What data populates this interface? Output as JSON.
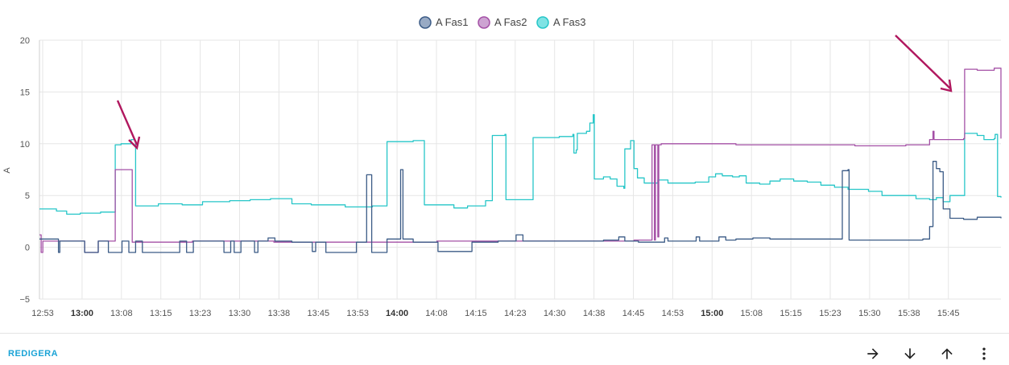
{
  "colors": {
    "series": [
      "#3b5b86",
      "#a450a6",
      "#26c6c8"
    ],
    "legend_fill": [
      "#98aac4",
      "#cda3d2",
      "#7fe3e4"
    ],
    "arrow": "#b0175e",
    "grid": "#e6e6e6",
    "edit": "#1aa3d6"
  },
  "chart_data": {
    "type": "line",
    "title": "",
    "xlabel": "",
    "ylabel": "A",
    "ylim": [
      -5,
      20
    ],
    "yticks": [
      "20",
      "15",
      "10",
      "5",
      "0",
      "−5"
    ],
    "grid": true,
    "legend_position": "top-center",
    "xticks": [
      "12:53",
      "13:00",
      "13:08",
      "13:15",
      "13:23",
      "13:30",
      "13:38",
      "13:45",
      "13:53",
      "14:00",
      "14:08",
      "14:15",
      "14:23",
      "14:30",
      "14:38",
      "14:45",
      "14:53",
      "15:00",
      "15:08",
      "15:15",
      "15:23",
      "15:30",
      "15:38",
      "15:45"
    ],
    "xticks_bold": [
      "13:00",
      "14:00",
      "15:00"
    ],
    "x_minutes_range": [
      0,
      185
    ],
    "series": [
      {
        "name": "A Fas1",
        "step": true,
        "points": [
          [
            0,
            0.8
          ],
          [
            5,
            0.8
          ],
          [
            5.6,
            -0.5
          ],
          [
            6,
            0.6
          ],
          [
            13,
            0.6
          ],
          [
            13.3,
            -0.5
          ],
          [
            17,
            -0.5
          ],
          [
            17.3,
            0.6
          ],
          [
            20,
            0.6
          ],
          [
            20.3,
            -0.5
          ],
          [
            24,
            -0.5
          ],
          [
            24.3,
            0.6
          ],
          [
            26,
            0.6
          ],
          [
            26.3,
            -0.5
          ],
          [
            28,
            -0.5
          ],
          [
            28.3,
            0.6
          ],
          [
            30,
            0.6
          ],
          [
            30.3,
            -0.5
          ],
          [
            41,
            -0.5
          ],
          [
            41.3,
            0.6
          ],
          [
            43,
            0.6
          ],
          [
            43.3,
            -0.5
          ],
          [
            45,
            -0.5
          ],
          [
            45.3,
            0.6
          ],
          [
            54,
            0.6
          ],
          [
            54.3,
            -0.5
          ],
          [
            56,
            -0.5
          ],
          [
            56.3,
            0.6
          ],
          [
            57,
            0.6
          ],
          [
            57.3,
            -0.5
          ],
          [
            59,
            -0.5
          ],
          [
            59.3,
            0.6
          ],
          [
            63,
            0.6
          ],
          [
            63.3,
            -0.5
          ],
          [
            64,
            -0.5
          ],
          [
            64.3,
            0.6
          ],
          [
            67,
            0.6
          ],
          [
            67.3,
            0.9
          ],
          [
            69,
            0.9
          ],
          [
            69.3,
            0.6
          ],
          [
            74,
            0.6
          ],
          [
            74.3,
            0.5
          ],
          [
            80,
            0.5
          ],
          [
            80.3,
            -0.4
          ],
          [
            81,
            -0.4
          ],
          [
            81.3,
            0.5
          ],
          [
            84,
            0.5
          ],
          [
            84.3,
            -0.5
          ],
          [
            93,
            -0.5
          ],
          [
            93.3,
            0.5
          ],
          [
            96,
            0.5
          ],
          [
            96.3,
            7.0
          ],
          [
            97.5,
            7.0
          ],
          [
            97.8,
            -0.5
          ],
          [
            102,
            -0.5
          ],
          [
            102.3,
            0.8
          ],
          [
            106,
            0.8
          ],
          [
            106.3,
            7.5
          ],
          [
            106.8,
            7.5
          ],
          [
            107,
            0.8
          ],
          [
            110,
            0.5
          ],
          [
            117,
            0.5
          ],
          [
            117.3,
            -0.4
          ],
          [
            127,
            -0.4
          ],
          [
            127.3,
            0.5
          ],
          [
            135,
            0.6
          ],
          [
            140,
            0.6
          ],
          [
            140.3,
            1.2
          ],
          [
            142,
            1.2
          ],
          [
            142.3,
            0.6
          ],
          [
            160,
            0.6
          ],
          [
            166,
            0.7
          ],
          [
            170,
            0.7
          ],
          [
            170.5,
            1.0
          ],
          [
            172,
            1.0
          ],
          [
            172.3,
            0.6
          ],
          [
            176,
            0.6
          ],
          [
            176.3,
            0.5
          ],
          [
            182,
            0.5
          ],
          [
            184,
            0.9
          ],
          [
            185,
            0.9
          ]
        ]
      },
      {
        "name": "A Fas2",
        "step": true,
        "points": [
          [
            0,
            1.2
          ],
          [
            0.5,
            -0.5
          ],
          [
            1,
            0.6
          ],
          [
            13,
            0.6
          ],
          [
            13.3,
            -0.5
          ],
          [
            17,
            -0.5
          ],
          [
            17.3,
            0.6
          ],
          [
            22,
            0.6
          ],
          [
            22.3,
            7.5
          ],
          [
            27,
            7.5
          ],
          [
            27.3,
            0.5
          ],
          [
            40,
            0.5
          ],
          [
            45,
            0.6
          ],
          [
            60,
            0.6
          ],
          [
            68,
            0.6
          ],
          [
            69,
            0.5
          ],
          [
            80,
            0.5
          ],
          [
            110,
            0.5
          ],
          [
            117,
            0.6
          ],
          [
            135,
            0.6
          ],
          [
            160,
            0.6
          ],
          [
            170,
            0.6
          ],
          [
            175,
            0.7
          ],
          [
            180,
            0.7
          ],
          [
            180.3,
            9.9
          ],
          [
            181,
            0.7
          ],
          [
            181.3,
            9.9
          ],
          [
            182,
            1.0
          ],
          [
            182.3,
            9.9
          ],
          [
            183,
            10.0
          ],
          [
            185,
            10.0
          ]
        ]
      },
      {
        "name": "A Fas3",
        "step": true,
        "points": [
          [
            0,
            3.7
          ],
          [
            3,
            3.7
          ],
          [
            5,
            3.5
          ],
          [
            8,
            3.2
          ],
          [
            12,
            3.3
          ],
          [
            18,
            3.4
          ],
          [
            22,
            3.4
          ],
          [
            22.3,
            9.9
          ],
          [
            24,
            10.0
          ],
          [
            27,
            10.4
          ],
          [
            28,
            10.3
          ],
          [
            28.3,
            4.0
          ],
          [
            35,
            4.2
          ],
          [
            42,
            4.1
          ],
          [
            48,
            4.4
          ],
          [
            56,
            4.5
          ],
          [
            62,
            4.6
          ],
          [
            68,
            4.7
          ],
          [
            74,
            4.7
          ],
          [
            74.3,
            4.2
          ],
          [
            80,
            4.1
          ],
          [
            90,
            3.9
          ],
          [
            98,
            4.0
          ],
          [
            102,
            4.0
          ],
          [
            102.3,
            10.2
          ],
          [
            110,
            10.3
          ],
          [
            113,
            10.3
          ],
          [
            113.3,
            4.1
          ],
          [
            118,
            4.1
          ],
          [
            122,
            3.8
          ],
          [
            126,
            4.0
          ],
          [
            131,
            4.0
          ],
          [
            131.3,
            4.5
          ],
          [
            133,
            4.5
          ],
          [
            133.3,
            10.8
          ],
          [
            137,
            10.9
          ],
          [
            137.3,
            4.6
          ],
          [
            145,
            4.6
          ],
          [
            145.3,
            10.6
          ],
          [
            153,
            10.7
          ],
          [
            157,
            10.9
          ],
          [
            157.3,
            9.1
          ],
          [
            158,
            9.4
          ],
          [
            158.3,
            11.0
          ],
          [
            161,
            11.2
          ],
          [
            162,
            12.0
          ],
          [
            163,
            12.8
          ],
          [
            163.3,
            6.6
          ],
          [
            166,
            6.8
          ],
          [
            168,
            6.6
          ],
          [
            170,
            5.9
          ],
          [
            172,
            5.7
          ],
          [
            172.3,
            9.5
          ],
          [
            174,
            10.3
          ],
          [
            175,
            7.6
          ],
          [
            176,
            6.7
          ],
          [
            178,
            6.2
          ],
          [
            182,
            6.5
          ],
          [
            185,
            6.2
          ]
        ]
      }
    ]
  },
  "chart_data_tail": {
    "x_minutes_range": [
      185,
      283
    ],
    "series": [
      {
        "name": "A Fas1",
        "points": [
          [
            185,
            0.6
          ],
          [
            193,
            0.6
          ],
          [
            193.3,
            1.0
          ],
          [
            194,
            1.0
          ],
          [
            194.3,
            0.6
          ],
          [
            198,
            0.6
          ],
          [
            200,
            1.0
          ],
          [
            201,
            1.0
          ],
          [
            202,
            0.7
          ],
          [
            204,
            0.7
          ],
          [
            205,
            0.8
          ],
          [
            207,
            0.8
          ],
          [
            208,
            0.8
          ],
          [
            210,
            0.9
          ],
          [
            214,
            0.9
          ],
          [
            215,
            0.8
          ],
          [
            230,
            0.8
          ],
          [
            236,
            0.8
          ],
          [
            236.3,
            7.4
          ],
          [
            238,
            7.5
          ],
          [
            238.3,
            0.7
          ],
          [
            250,
            0.7
          ],
          [
            260,
            0.8
          ],
          [
            261,
            0.8
          ],
          [
            262,
            2.0
          ],
          [
            263,
            8.3
          ],
          [
            264,
            7.6
          ],
          [
            265,
            7.3
          ],
          [
            266,
            3.7
          ],
          [
            268,
            2.8
          ],
          [
            272,
            2.7
          ],
          [
            276,
            2.9
          ],
          [
            280,
            2.9
          ],
          [
            283,
            2.8
          ]
        ]
      },
      {
        "name": "A Fas2",
        "points": [
          [
            185,
            10.0
          ],
          [
            193,
            10.0
          ],
          [
            205,
            9.9
          ],
          [
            215,
            9.9
          ],
          [
            230,
            9.9
          ],
          [
            240,
            9.8
          ],
          [
            255,
            9.9
          ],
          [
            262,
            10.4
          ],
          [
            263,
            11.2
          ],
          [
            263.3,
            10.4
          ],
          [
            266,
            10.4
          ],
          [
            272,
            10.5
          ],
          [
            272.3,
            17.2
          ],
          [
            276,
            17.1
          ],
          [
            280,
            17.1
          ],
          [
            281,
            17.3
          ],
          [
            283,
            10.5
          ]
        ]
      },
      {
        "name": "A Fas3",
        "points": [
          [
            185,
            6.2
          ],
          [
            193,
            6.3
          ],
          [
            197,
            6.8
          ],
          [
            199,
            7.1
          ],
          [
            201,
            6.9
          ],
          [
            204,
            6.8
          ],
          [
            206,
            6.9
          ],
          [
            208,
            6.2
          ],
          [
            212,
            6.1
          ],
          [
            215,
            6.4
          ],
          [
            218,
            6.6
          ],
          [
            222,
            6.4
          ],
          [
            226,
            6.3
          ],
          [
            230,
            6.0
          ],
          [
            234,
            5.8
          ],
          [
            238,
            5.6
          ],
          [
            244,
            5.4
          ],
          [
            248,
            5.0
          ],
          [
            254,
            5.0
          ],
          [
            258,
            4.7
          ],
          [
            262,
            4.6
          ],
          [
            264,
            4.8
          ],
          [
            266,
            4.4
          ],
          [
            268,
            5.0
          ],
          [
            272,
            5.0
          ],
          [
            272.3,
            11.0
          ],
          [
            276,
            10.8
          ],
          [
            278,
            10.4
          ],
          [
            281,
            10.5
          ],
          [
            281.3,
            10.9
          ],
          [
            282,
            4.9
          ],
          [
            283,
            4.8
          ]
        ]
      }
    ]
  },
  "legend": [
    {
      "label": "A Fas1"
    },
    {
      "label": "A Fas2"
    },
    {
      "label": "A Fas3"
    }
  ],
  "footer": {
    "edit_label": "REDIGERA",
    "actions": [
      "arrow-right-icon",
      "arrow-down-icon",
      "arrow-up-icon",
      "more-vert-icon"
    ]
  }
}
